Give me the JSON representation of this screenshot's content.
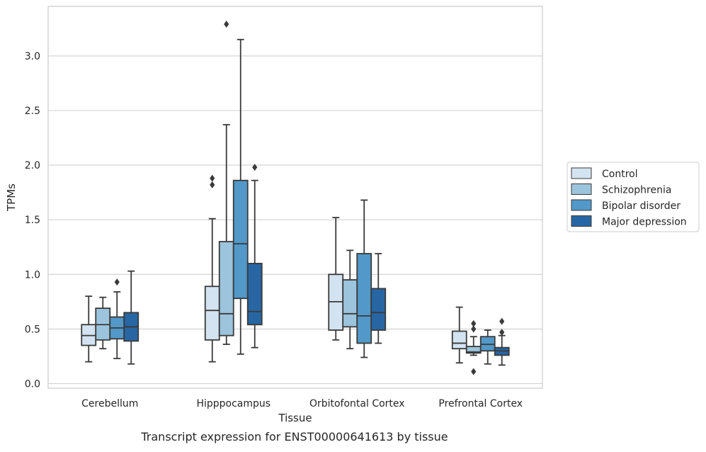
{
  "caption": "Transcript expression for ENST00000641613 by tissue",
  "chart_data": {
    "type": "box",
    "xlabel": "Tissue",
    "ylabel": "TPMs",
    "ylim": [
      -0.05,
      3.43
    ],
    "y_ticks": [
      "0.0",
      "0.5",
      "1.0",
      "1.5",
      "2.0",
      "2.5",
      "3.0"
    ],
    "grid": "horizontal",
    "legend_placement": "right",
    "categories": [
      "Cerebellum",
      "Hipppocampus",
      "Orbitofontal Cortex",
      "Prefrontal Cortex"
    ],
    "colors": [
      "#d3e3f1",
      "#9cc4dd",
      "#5298c8",
      "#2866a3"
    ],
    "series": [
      {
        "name": "Control",
        "boxes": [
          {
            "whisker_low": 0.2,
            "q1": 0.35,
            "median": 0.44,
            "q3": 0.54,
            "whisker_high": 0.8,
            "outliers": []
          },
          {
            "whisker_low": 0.2,
            "q1": 0.4,
            "median": 0.67,
            "q3": 0.89,
            "whisker_high": 1.51,
            "outliers": [
              1.82,
              1.88
            ]
          },
          {
            "whisker_low": 0.4,
            "q1": 0.49,
            "median": 0.75,
            "q3": 1.0,
            "whisker_high": 1.52,
            "outliers": []
          },
          {
            "whisker_low": 0.19,
            "q1": 0.32,
            "median": 0.37,
            "q3": 0.48,
            "whisker_high": 0.7,
            "outliers": []
          }
        ]
      },
      {
        "name": "Schizophrenia",
        "boxes": [
          {
            "whisker_low": 0.32,
            "q1": 0.4,
            "median": 0.54,
            "q3": 0.69,
            "whisker_high": 0.79,
            "outliers": []
          },
          {
            "whisker_low": 0.36,
            "q1": 0.44,
            "median": 0.64,
            "q3": 1.3,
            "whisker_high": 2.37,
            "outliers": [
              3.29
            ]
          },
          {
            "whisker_low": 0.32,
            "q1": 0.52,
            "median": 0.64,
            "q3": 0.95,
            "whisker_high": 1.22,
            "outliers": []
          },
          {
            "whisker_low": 0.26,
            "q1": 0.28,
            "median": 0.29,
            "q3": 0.34,
            "whisker_high": 0.43,
            "outliers": [
              0.11,
              0.5,
              0.55
            ]
          }
        ]
      },
      {
        "name": "Bipolar disorder",
        "boxes": [
          {
            "whisker_low": 0.23,
            "q1": 0.41,
            "median": 0.51,
            "q3": 0.61,
            "whisker_high": 0.84,
            "outliers": [
              0.93
            ]
          },
          {
            "whisker_low": 0.27,
            "q1": 0.78,
            "median": 1.28,
            "q3": 1.86,
            "whisker_high": 3.15,
            "outliers": []
          },
          {
            "whisker_low": 0.24,
            "q1": 0.37,
            "median": 0.62,
            "q3": 1.19,
            "whisker_high": 1.68,
            "outliers": []
          },
          {
            "whisker_low": 0.18,
            "q1": 0.3,
            "median": 0.36,
            "q3": 0.43,
            "whisker_high": 0.49,
            "outliers": []
          }
        ]
      },
      {
        "name": "Major depression",
        "boxes": [
          {
            "whisker_low": 0.18,
            "q1": 0.39,
            "median": 0.52,
            "q3": 0.65,
            "whisker_high": 1.03,
            "outliers": []
          },
          {
            "whisker_low": 0.33,
            "q1": 0.54,
            "median": 0.66,
            "q3": 1.1,
            "whisker_high": 1.86,
            "outliers": [
              1.98
            ]
          },
          {
            "whisker_low": 0.37,
            "q1": 0.49,
            "median": 0.65,
            "q3": 0.87,
            "whisker_high": 1.19,
            "outliers": []
          },
          {
            "whisker_low": 0.17,
            "q1": 0.26,
            "median": 0.3,
            "q3": 0.33,
            "whisker_high": 0.44,
            "outliers": [
              0.47,
              0.57
            ]
          }
        ]
      }
    ]
  }
}
